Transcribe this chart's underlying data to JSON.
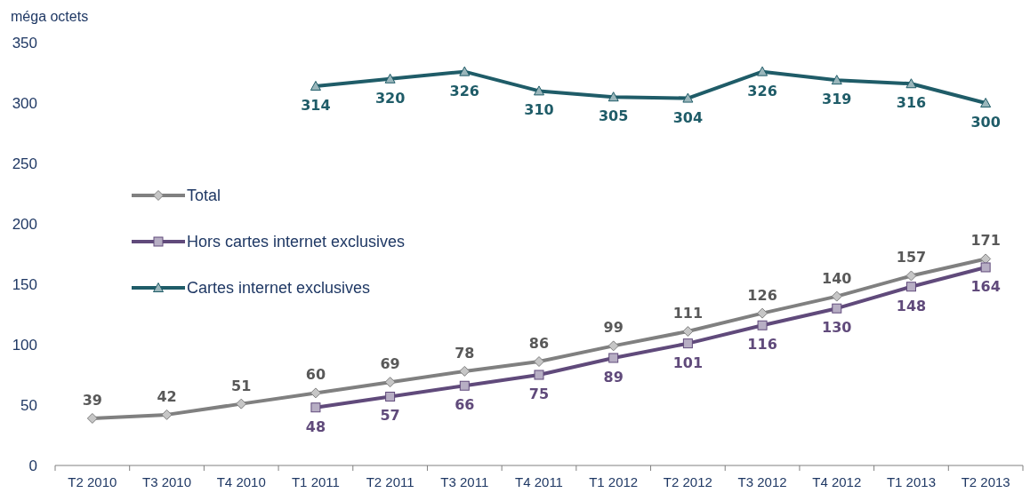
{
  "chart_data": {
    "type": "line",
    "ylabel": "méga octets",
    "categories": [
      "T2 2010",
      "T3 2010",
      "T4 2010",
      "T1 2011",
      "T2 2011",
      "T3 2011",
      "T4 2011",
      "T1 2012",
      "T2 2012",
      "T3 2012",
      "T4 2012",
      "T1 2013",
      "T2 2013"
    ],
    "series": [
      {
        "name": "Total",
        "color": "#808080",
        "marker": "diamond",
        "values": [
          39,
          42,
          51,
          60,
          69,
          78,
          86,
          99,
          111,
          126,
          140,
          157,
          171
        ]
      },
      {
        "name": "Hors cartes internet exclusives",
        "color": "#604a7b",
        "marker": "square",
        "values": [
          null,
          null,
          null,
          48,
          57,
          66,
          75,
          89,
          101,
          116,
          130,
          148,
          164
        ]
      },
      {
        "name": "Cartes internet exclusives",
        "color": "#1f5c68",
        "marker": "triangle",
        "values": [
          null,
          null,
          null,
          314,
          320,
          326,
          310,
          305,
          304,
          326,
          319,
          316,
          300
        ]
      }
    ],
    "ylim": [
      0,
      350
    ],
    "yticks": [
      0,
      50,
      100,
      150,
      200,
      250,
      300,
      350
    ],
    "grid": false,
    "legend": "left",
    "data_labels": true,
    "line_style": "solid"
  }
}
